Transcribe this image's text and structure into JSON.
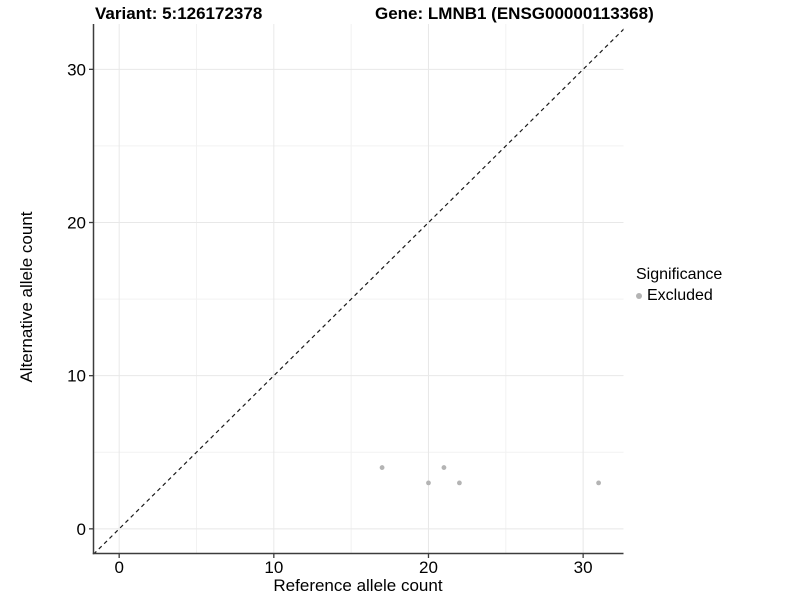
{
  "titles": {
    "variant": "Variant: 5:126172378",
    "gene": "Gene: LMNB1 (ENSG00000113368)"
  },
  "legend": {
    "title": "Significance",
    "items": [
      {
        "label": "Excluded",
        "color": "#b4b4b4"
      }
    ]
  },
  "colors": {
    "point": "#b4b4b4",
    "grid_major": "#e8e8e8",
    "grid_minor": "#f2f2f2",
    "axis_line": "#3c3c3c",
    "tick_mark": "#3c3c3c",
    "identity_line": "#1a1a1a",
    "background": "#ffffff"
  },
  "chart_data": {
    "type": "scatter",
    "title": "Variant: 5:126172378    Gene: LMNB1 (ENSG00000113368)",
    "xlabel": "Reference allele count",
    "ylabel": "Alternative allele count",
    "xlim": [
      -1.66,
      32.61
    ],
    "ylim": [
      -1.61,
      32.96
    ],
    "x_ticks": [
      0,
      10,
      20,
      30
    ],
    "y_ticks": [
      0,
      10,
      20,
      30
    ],
    "x_minor_gridlines": [
      5,
      15,
      25
    ],
    "y_minor_gridlines": [
      5,
      15,
      25
    ],
    "grid": true,
    "legend_position": "right",
    "reference_line": {
      "kind": "identity",
      "equation": "y = x",
      "style": "dashed"
    },
    "series": [
      {
        "name": "Excluded",
        "color": "#b4b4b4",
        "points": [
          [
            17,
            4
          ],
          [
            20,
            3
          ],
          [
            21,
            4
          ],
          [
            22,
            3
          ],
          [
            31,
            3
          ]
        ]
      }
    ]
  }
}
